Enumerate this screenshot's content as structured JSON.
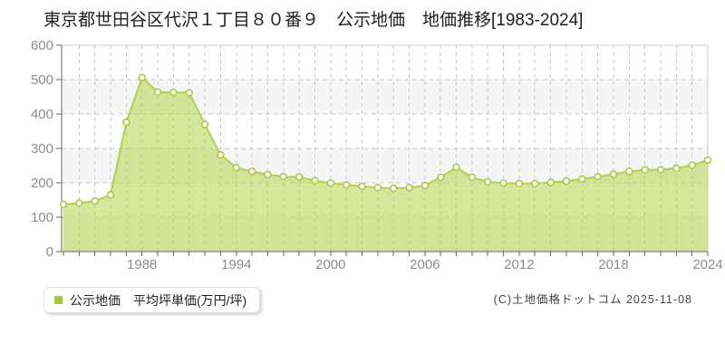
{
  "title": "東京都世田谷区代沢１丁目８０番９　公示地価　地価推移[1983-2024]",
  "legend": {
    "label": "公示地価　平均坪単価(万円/坪)"
  },
  "footer": {
    "copyright": "(C)土地価格ドットコム 2025-11-08"
  },
  "colors": {
    "area_fill": "rgba(182,210,76,0.55)",
    "area_line": "#b3d04f",
    "marker_fill": "#ffffff",
    "marker_stroke": "#aacb45",
    "legend_marker": "#a6cb39",
    "grid": "#c9c9c9",
    "band": "#f5f5f5",
    "plot_border": "#cccccc",
    "axis": "#666666",
    "tick_label": "#8c8c8c"
  },
  "chart_data": {
    "type": "area",
    "title": "東京都世田谷区代沢１丁目８０番９ 公示地価 地価推移[1983-2024]",
    "xlabel": "",
    "ylabel": "平均坪単価(万円/坪)",
    "series_name": "公示地価 平均坪単価(万円/坪)",
    "x": [
      1983,
      1984,
      1985,
      1986,
      1987,
      1988,
      1989,
      1990,
      1991,
      1992,
      1993,
      1994,
      1995,
      1996,
      1997,
      1998,
      1999,
      2000,
      2001,
      2002,
      2003,
      2004,
      2005,
      2006,
      2007,
      2008,
      2009,
      2010,
      2011,
      2012,
      2013,
      2014,
      2015,
      2016,
      2017,
      2018,
      2019,
      2020,
      2021,
      2022,
      2023,
      2024
    ],
    "values": [
      137,
      141,
      147,
      165,
      376,
      506,
      464,
      463,
      462,
      370,
      281,
      244,
      233,
      224,
      218,
      217,
      206,
      199,
      194,
      190,
      186,
      184,
      186,
      192,
      216,
      245,
      216,
      203,
      199,
      198,
      198,
      201,
      205,
      211,
      218,
      225,
      233,
      238,
      238,
      242,
      251,
      266
    ],
    "ylim": [
      0,
      600
    ],
    "yticks": [
      0,
      100,
      200,
      300,
      400,
      500,
      600
    ],
    "xticks": [
      1988,
      1994,
      2000,
      2006,
      2012,
      2018,
      2024
    ],
    "grid": true,
    "legend_position": "bottom-left"
  }
}
